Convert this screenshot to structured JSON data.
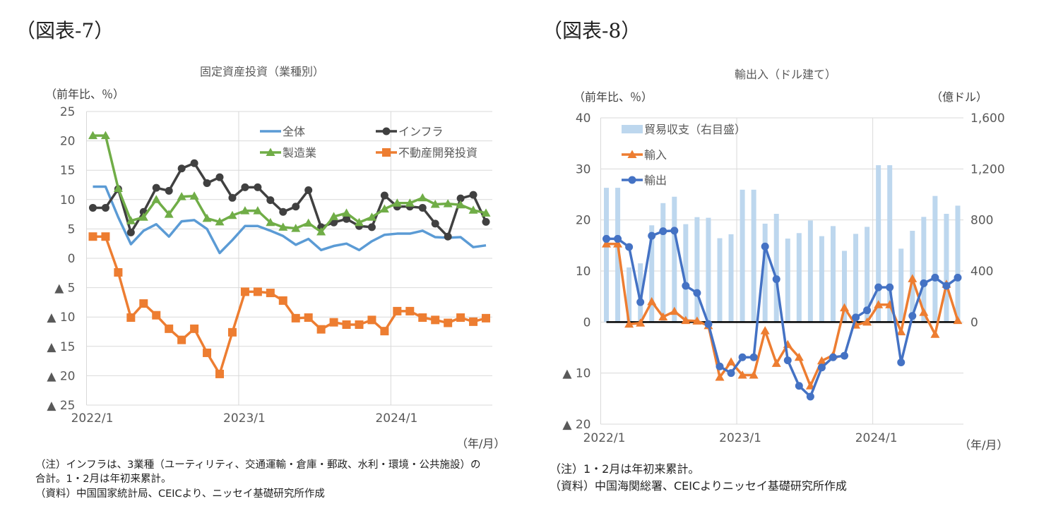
{
  "chart_data": [
    {
      "type": "line",
      "figure_label": "（図表-7）",
      "title": "固定資産投資（業種別）",
      "ylabel": "（前年比、％）",
      "xlabel": "（年/月）",
      "ylim": [
        -25,
        25
      ],
      "yticks": [
        25,
        20,
        15,
        10,
        5,
        0,
        -5,
        -10,
        -15,
        -20,
        -25
      ],
      "ytick_labels": [
        "25",
        "20",
        "15",
        "10",
        "5",
        "0",
        "▲ 5",
        "▲ 10",
        "▲ 15",
        "▲ 20",
        "▲ 25"
      ],
      "xtick_labels": [
        "2022/1",
        "2023/1",
        "2024/1"
      ],
      "x": [
        "2022/1",
        "2022/2",
        "2022/3",
        "2022/4",
        "2022/5",
        "2022/6",
        "2022/7",
        "2022/8",
        "2022/9",
        "2022/10",
        "2022/11",
        "2022/12",
        "2023/1",
        "2023/2",
        "2023/3",
        "2023/4",
        "2023/5",
        "2023/6",
        "2023/7",
        "2023/8",
        "2023/9",
        "2023/10",
        "2023/11",
        "2023/12",
        "2024/1",
        "2024/2",
        "2024/3",
        "2024/4",
        "2024/5",
        "2024/6",
        "2024/7",
        "2024/8"
      ],
      "grid": true,
      "legend_position": "top-right",
      "series": [
        {
          "name": "全体",
          "color": "#5b9bd5",
          "marker": "none",
          "values": [
            12.2,
            12.2,
            7.0,
            2.4,
            4.7,
            5.8,
            3.7,
            6.3,
            6.5,
            5.0,
            0.9,
            3.1,
            5.5,
            5.5,
            4.7,
            3.8,
            2.3,
            3.3,
            1.4,
            2.1,
            2.5,
            1.4,
            2.9,
            4.0,
            4.2,
            4.2,
            4.7,
            3.6,
            3.5,
            3.6,
            1.9,
            2.2
          ]
        },
        {
          "name": "インフラ",
          "color": "#404040",
          "marker": "circle",
          "values": [
            8.6,
            8.6,
            11.8,
            4.4,
            7.9,
            12.0,
            11.5,
            15.3,
            16.2,
            12.8,
            13.8,
            10.3,
            12.1,
            12.1,
            9.9,
            7.9,
            8.8,
            11.6,
            5.3,
            6.1,
            6.7,
            5.5,
            5.3,
            10.7,
            8.8,
            8.8,
            8.6,
            5.9,
            3.7,
            10.2,
            10.8,
            6.2
          ]
        },
        {
          "name": "製造業",
          "color": "#70ad47",
          "marker": "triangle",
          "values": [
            20.9,
            20.9,
            11.9,
            6.4,
            7.0,
            10.0,
            7.5,
            10.5,
            10.6,
            6.8,
            6.2,
            7.3,
            8.1,
            8.1,
            6.1,
            5.3,
            5.1,
            6.0,
            4.5,
            7.1,
            7.7,
            6.1,
            7.0,
            8.4,
            9.4,
            9.4,
            10.3,
            9.2,
            9.3,
            9.1,
            8.2,
            7.7
          ]
        },
        {
          "name": "不動産開発投資",
          "color": "#ed7d31",
          "marker": "square",
          "values": [
            3.7,
            3.7,
            -2.4,
            -10.1,
            -7.7,
            -9.7,
            -12.0,
            -13.9,
            -12.0,
            -16.1,
            -19.7,
            -12.6,
            -5.7,
            -5.7,
            -5.9,
            -7.2,
            -10.2,
            -10.1,
            -12.1,
            -10.9,
            -11.3,
            -11.3,
            -10.5,
            -12.4,
            -9.0,
            -9.0,
            -10.1,
            -10.5,
            -11.0,
            -10.1,
            -10.8,
            -10.2
          ]
        }
      ],
      "notes": [
        "（注）インフラは、3業種（ユーティリティ、交通運輸・倉庫・郵政、水利・環境・公共施設）の",
        "合計。1・2月は年初来累計。",
        "（資料）中国国家統計局、CEICより、ニッセイ基礎研究所作成"
      ]
    },
    {
      "type": "bar+line",
      "figure_label": "（図表-8）",
      "title": "輸出入（ドル建て）",
      "ylabel": "（前年比、％）",
      "y2label": "（億ドル）",
      "xlabel": "（年/月）",
      "ylim": [
        -20,
        40
      ],
      "y2lim": [
        -800,
        1600
      ],
      "yticks": [
        40,
        30,
        20,
        10,
        0,
        -10,
        -20
      ],
      "ytick_labels": [
        "40",
        "30",
        "20",
        "10",
        "0",
        "▲ 10",
        "▲ 20"
      ],
      "y2ticks": [
        1600,
        1200,
        800,
        400,
        0
      ],
      "y2tick_labels": [
        "1,600",
        "1,200",
        "800",
        "400",
        "0"
      ],
      "xtick_labels": [
        "2022/1",
        "2023/1",
        "2024/1"
      ],
      "x": [
        "2022/1",
        "2022/2",
        "2022/3",
        "2022/4",
        "2022/5",
        "2022/6",
        "2022/7",
        "2022/8",
        "2022/9",
        "2022/10",
        "2022/11",
        "2022/12",
        "2023/1",
        "2023/2",
        "2023/3",
        "2023/4",
        "2023/5",
        "2023/6",
        "2023/7",
        "2023/8",
        "2023/9",
        "2023/10",
        "2023/11",
        "2023/12",
        "2024/1",
        "2024/2",
        "2024/3",
        "2024/4",
        "2024/5",
        "2024/6",
        "2024/7",
        "2024/8"
      ],
      "grid": true,
      "legend_position": "top-left",
      "series": [
        {
          "name": "貿易収支（右目盛）",
          "type": "bar",
          "axis": "right",
          "color": "#bdd7ee",
          "values": [
            1052,
            1052,
            428,
            460,
            758,
            932,
            982,
            767,
            822,
            817,
            657,
            688,
            1037,
            1037,
            771,
            848,
            654,
            697,
            796,
            673,
            752,
            558,
            691,
            746,
            1229,
            1229,
            575,
            715,
            824,
            988,
            848,
            912
          ]
        },
        {
          "name": "輸入",
          "type": "line",
          "axis": "left",
          "color": "#ed7d31",
          "marker": "triangle",
          "values": [
            15.3,
            15.3,
            -0.4,
            -0.2,
            4.0,
            1.0,
            2.1,
            0.3,
            0.2,
            -0.7,
            -10.8,
            -7.8,
            -10.4,
            -10.4,
            -1.7,
            -8.1,
            -4.4,
            -6.9,
            -12.5,
            -7.6,
            -6.5,
            2.8,
            -0.6,
            0.0,
            3.4,
            3.4,
            -1.9,
            8.5,
            1.9,
            -2.4,
            7.4,
            0.3
          ]
        },
        {
          "name": "輸出",
          "type": "line",
          "axis": "left",
          "color": "#4472c4",
          "marker": "circle",
          "values": [
            16.3,
            16.3,
            14.7,
            3.9,
            16.9,
            17.8,
            17.9,
            7.1,
            5.7,
            -0.4,
            -8.7,
            -10.0,
            -6.9,
            -6.9,
            14.8,
            8.4,
            -7.5,
            -12.5,
            -14.6,
            -8.9,
            -6.9,
            -6.6,
            0.9,
            2.3,
            6.8,
            6.8,
            -7.9,
            1.2,
            7.6,
            8.7,
            7.1,
            8.7
          ]
        }
      ],
      "notes": [
        "（注）1・2月は年初来累計。",
        "（資料）中国海関総署、CEICよりニッセイ基礎研究所作成"
      ]
    }
  ]
}
